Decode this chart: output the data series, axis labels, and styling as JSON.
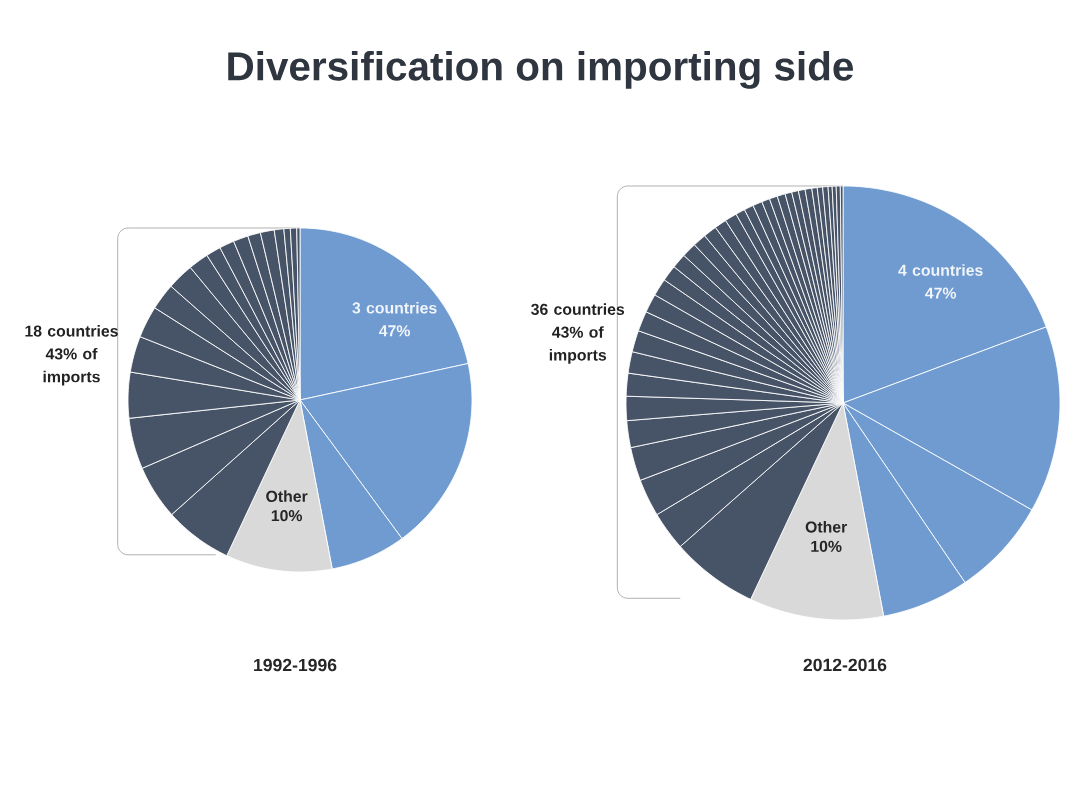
{
  "chart_data": [
    {
      "type": "pie",
      "title": "Diversification on importing side",
      "xlabel": "1992-1996",
      "categories": [
        null,
        null,
        null,
        "Other",
        null,
        null,
        null,
        null,
        null,
        null,
        null,
        null,
        null,
        null,
        null,
        null,
        null,
        null,
        null,
        null,
        null,
        null
      ],
      "values": [
        21.6,
        18.3,
        7.1,
        10,
        6.4,
        5.1,
        4.8,
        4.3,
        3.4,
        3.0,
        2.5,
        2.5,
        1.9,
        1.4,
        1.4,
        1.4,
        1.2,
        1.3,
        0.9,
        0.6,
        0.6,
        0.3
      ],
      "colors": [
        "#6f9bd1",
        "#6f9bd1",
        "#6f9bd1",
        "#d9d9d9",
        "#475468",
        "#475468",
        "#475468",
        "#475468",
        "#475468",
        "#475468",
        "#475468",
        "#475468",
        "#475468",
        "#475468",
        "#475468",
        "#475468",
        "#475468",
        "#475468",
        "#475468",
        "#475468",
        "#475468",
        "#475468"
      ],
      "value_labels": [
        null,
        null,
        null,
        "10%",
        null,
        null,
        null,
        null,
        null,
        null,
        null,
        null,
        null,
        null,
        null,
        null,
        null,
        null,
        null,
        null,
        null,
        null
      ],
      "annotations": [
        "18 countries 43% of imports",
        "3 countries 47%"
      ]
    },
    {
      "type": "pie",
      "xlabel": "2012-2016",
      "categories": [
        null,
        null,
        null,
        null,
        "Other",
        null,
        null,
        null,
        null,
        null,
        null,
        null,
        null,
        null,
        null,
        null,
        null,
        null,
        null,
        null,
        null,
        null,
        null,
        null,
        null,
        null,
        null,
        null,
        null,
        null,
        null,
        null,
        null,
        null,
        null,
        null,
        null,
        null,
        null,
        null,
        null
      ],
      "values": [
        19.3,
        13.9,
        7.3,
        6.5,
        10,
        6.5,
        2.9,
        2.8,
        2.5,
        2.0,
        1.8,
        1.7,
        1.6,
        1.6,
        1.5,
        1.4,
        1.3,
        1.2,
        1.1,
        1.1,
        1.0,
        1.0,
        0.9,
        0.9,
        0.7,
        0.7,
        0.7,
        0.6,
        0.6,
        0.6,
        0.5,
        0.5,
        0.5,
        0.5,
        0.4,
        0.4,
        0.4,
        0.3,
        0.3,
        0.3,
        0.2
      ],
      "colors": [
        "#6f9bd1",
        "#6f9bd1",
        "#6f9bd1",
        "#6f9bd1",
        "#d9d9d9",
        "#475468",
        "#475468",
        "#475468",
        "#475468",
        "#475468",
        "#475468",
        "#475468",
        "#475468",
        "#475468",
        "#475468",
        "#475468",
        "#475468",
        "#475468",
        "#475468",
        "#475468",
        "#475468",
        "#475468",
        "#475468",
        "#475468",
        "#475468",
        "#475468",
        "#475468",
        "#475468",
        "#475468",
        "#475468",
        "#475468",
        "#475468",
        "#475468",
        "#475468",
        "#475468",
        "#475468",
        "#475468",
        "#475468",
        "#475468",
        "#475468",
        "#475468"
      ],
      "value_labels": [
        null,
        null,
        null,
        null,
        "10%",
        null,
        null,
        null,
        null,
        null,
        null,
        null,
        null,
        null,
        null,
        null,
        null,
        null,
        null,
        null,
        null,
        null,
        null,
        null,
        null,
        null,
        null,
        null,
        null,
        null,
        null,
        null,
        null,
        null,
        null,
        null,
        null,
        null,
        null,
        null,
        null
      ],
      "annotations": [
        "36 countries 43% of imports",
        "4 countries 47%"
      ]
    }
  ]
}
